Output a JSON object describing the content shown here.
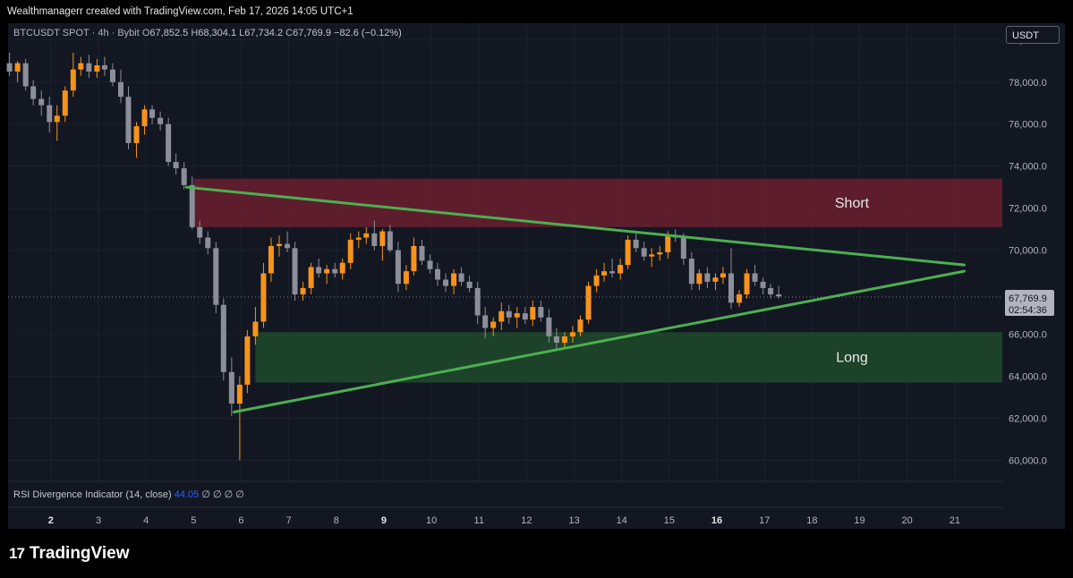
{
  "header": {
    "credit": "Wealthmanagerr created with TradingView.com, Feb 17, 2026 14:05 UTC+1"
  },
  "legend": {
    "symbol": "BTCUSDT SPOT · 4h · Bybit",
    "open_label": "O",
    "open": "67,852.5",
    "high_label": "H",
    "high": "68,304.1",
    "low_label": "L",
    "low": "67,734.2",
    "close_label": "C",
    "close": "67,769.9",
    "change": "−82.6 (−0.12%)"
  },
  "currency_button": "USDT",
  "indicator": {
    "name": "RSI Divergence Indicator (14, close)",
    "value": "44.05",
    "placeholders": "∅ ∅ ∅ ∅"
  },
  "brand": {
    "logo_glyph": "17",
    "name": "TradingView"
  },
  "colors": {
    "background": "#131722",
    "bull_candle": "#f7931a",
    "bear_candle": "#8c8f99",
    "short_zone": "#6b1f2e",
    "long_zone": "#1f4a2a",
    "triangle_line": "#4caf50",
    "price_label_bg": "#b2b5be"
  },
  "chart_data": {
    "type": "candlestick",
    "symbol": "BTCUSDT",
    "interval": "4h",
    "y_axis": {
      "ticks": [
        "80,000.0",
        "78,000.0",
        "76,000.0",
        "74,000.0",
        "72,000.0",
        "70,000.0",
        "66,000.0",
        "64,000.0",
        "62,000.0",
        "60,000.0"
      ],
      "tick_values": [
        80000,
        78000,
        76000,
        74000,
        72000,
        70000,
        66000,
        64000,
        62000,
        60000
      ],
      "range": [
        59000,
        80800
      ],
      "position": "right"
    },
    "x_axis": {
      "ticks": [
        "2",
        "3",
        "4",
        "5",
        "6",
        "7",
        "8",
        "9",
        "10",
        "11",
        "12",
        "13",
        "14",
        "15",
        "16",
        "17",
        "18",
        "19",
        "20",
        "21"
      ],
      "tick_days": [
        2,
        3,
        4,
        5,
        6,
        7,
        8,
        9,
        10,
        11,
        12,
        13,
        14,
        15,
        16,
        17,
        18,
        19,
        20,
        21
      ],
      "bold_ticks": [
        "2",
        "9",
        "16"
      ],
      "range_days": [
        1.1,
        22.0
      ]
    },
    "current_price": {
      "value": 67769.9,
      "label": "67,769.9",
      "countdown": "02:54:36"
    },
    "zones": [
      {
        "name": "Short",
        "label": "Short",
        "from_day": 5.0,
        "to_day": 22.0,
        "low": 71100,
        "high": 73400
      },
      {
        "name": "Long",
        "label": "Long",
        "from_day": 6.3,
        "to_day": 22.0,
        "low": 63700,
        "high": 66100
      }
    ],
    "lines": [
      {
        "name": "triangle-upper",
        "points": [
          [
            4.85,
            73000
          ],
          [
            21.2,
            69300
          ]
        ]
      },
      {
        "name": "triangle-lower",
        "points": [
          [
            5.85,
            62300
          ],
          [
            21.2,
            69000
          ]
        ]
      }
    ],
    "candles": [
      {
        "d": 1.13,
        "o": 78900,
        "h": 79400,
        "l": 78300,
        "c": 78500
      },
      {
        "d": 1.3,
        "o": 78500,
        "h": 79000,
        "l": 78000,
        "c": 78900
      },
      {
        "d": 1.47,
        "o": 78900,
        "h": 79100,
        "l": 77600,
        "c": 77800
      },
      {
        "d": 1.63,
        "o": 77800,
        "h": 78100,
        "l": 76900,
        "c": 77200
      },
      {
        "d": 1.8,
        "o": 77200,
        "h": 77600,
        "l": 76400,
        "c": 76900
      },
      {
        "d": 1.97,
        "o": 76900,
        "h": 77300,
        "l": 75600,
        "c": 76100
      },
      {
        "d": 2.13,
        "o": 76100,
        "h": 76900,
        "l": 75200,
        "c": 76400
      },
      {
        "d": 2.3,
        "o": 76400,
        "h": 77800,
        "l": 76100,
        "c": 77600
      },
      {
        "d": 2.47,
        "o": 77600,
        "h": 79400,
        "l": 77300,
        "c": 78600
      },
      {
        "d": 2.63,
        "o": 78600,
        "h": 79200,
        "l": 78300,
        "c": 78900
      },
      {
        "d": 2.8,
        "o": 78900,
        "h": 79300,
        "l": 78200,
        "c": 78500
      },
      {
        "d": 2.97,
        "o": 78500,
        "h": 79100,
        "l": 78200,
        "c": 78800
      },
      {
        "d": 3.13,
        "o": 78800,
        "h": 79200,
        "l": 78300,
        "c": 78600
      },
      {
        "d": 3.3,
        "o": 78600,
        "h": 78900,
        "l": 77800,
        "c": 78000
      },
      {
        "d": 3.47,
        "o": 78000,
        "h": 78600,
        "l": 77000,
        "c": 77300
      },
      {
        "d": 3.63,
        "o": 77300,
        "h": 77800,
        "l": 74800,
        "c": 75100
      },
      {
        "d": 3.8,
        "o": 75100,
        "h": 76100,
        "l": 74400,
        "c": 75900
      },
      {
        "d": 3.97,
        "o": 75900,
        "h": 76900,
        "l": 75500,
        "c": 76700
      },
      {
        "d": 4.13,
        "o": 76700,
        "h": 76900,
        "l": 76000,
        "c": 76300
      },
      {
        "d": 4.3,
        "o": 76300,
        "h": 76600,
        "l": 75700,
        "c": 76000
      },
      {
        "d": 4.47,
        "o": 76000,
        "h": 76300,
        "l": 74000,
        "c": 74200
      },
      {
        "d": 4.63,
        "o": 74200,
        "h": 74600,
        "l": 73600,
        "c": 73900
      },
      {
        "d": 4.8,
        "o": 73900,
        "h": 74200,
        "l": 72900,
        "c": 73100
      },
      {
        "d": 4.97,
        "o": 73100,
        "h": 73500,
        "l": 71000,
        "c": 71100
      },
      {
        "d": 5.13,
        "o": 71100,
        "h": 71400,
        "l": 70300,
        "c": 70600
      },
      {
        "d": 5.3,
        "o": 70600,
        "h": 70900,
        "l": 69800,
        "c": 70100
      },
      {
        "d": 5.47,
        "o": 70100,
        "h": 70400,
        "l": 67000,
        "c": 67400
      },
      {
        "d": 5.63,
        "o": 67400,
        "h": 67700,
        "l": 63800,
        "c": 64200
      },
      {
        "d": 5.8,
        "o": 64200,
        "h": 64900,
        "l": 62100,
        "c": 62700
      },
      {
        "d": 5.97,
        "o": 62700,
        "h": 64000,
        "l": 60000,
        "c": 63600
      },
      {
        "d": 6.13,
        "o": 63600,
        "h": 66200,
        "l": 63200,
        "c": 65900
      },
      {
        "d": 6.3,
        "o": 65900,
        "h": 67300,
        "l": 65500,
        "c": 66600
      },
      {
        "d": 6.47,
        "o": 66600,
        "h": 69400,
        "l": 66300,
        "c": 68900
      },
      {
        "d": 6.63,
        "o": 68900,
        "h": 70600,
        "l": 68500,
        "c": 70200
      },
      {
        "d": 6.8,
        "o": 70200,
        "h": 70700,
        "l": 69700,
        "c": 70300
      },
      {
        "d": 6.97,
        "o": 70300,
        "h": 70900,
        "l": 69900,
        "c": 70100
      },
      {
        "d": 7.13,
        "o": 70100,
        "h": 70400,
        "l": 67600,
        "c": 67900
      },
      {
        "d": 7.3,
        "o": 67900,
        "h": 68500,
        "l": 67600,
        "c": 68200
      },
      {
        "d": 7.47,
        "o": 68200,
        "h": 69400,
        "l": 67900,
        "c": 69200
      },
      {
        "d": 7.63,
        "o": 69200,
        "h": 69600,
        "l": 68700,
        "c": 68900
      },
      {
        "d": 7.8,
        "o": 68900,
        "h": 69300,
        "l": 68400,
        "c": 69100
      },
      {
        "d": 7.97,
        "o": 69100,
        "h": 69400,
        "l": 68700,
        "c": 68900
      },
      {
        "d": 8.13,
        "o": 68900,
        "h": 69600,
        "l": 68600,
        "c": 69400
      },
      {
        "d": 8.3,
        "o": 69400,
        "h": 70800,
        "l": 69100,
        "c": 70500
      },
      {
        "d": 8.47,
        "o": 70500,
        "h": 70900,
        "l": 70100,
        "c": 70600
      },
      {
        "d": 8.63,
        "o": 70600,
        "h": 71100,
        "l": 70300,
        "c": 70800
      },
      {
        "d": 8.8,
        "o": 70800,
        "h": 71400,
        "l": 70000,
        "c": 70200
      },
      {
        "d": 8.97,
        "o": 70200,
        "h": 71000,
        "l": 69500,
        "c": 70900
      },
      {
        "d": 9.13,
        "o": 70900,
        "h": 71200,
        "l": 69900,
        "c": 70000
      },
      {
        "d": 9.3,
        "o": 70000,
        "h": 70400,
        "l": 68000,
        "c": 68400
      },
      {
        "d": 9.47,
        "o": 68400,
        "h": 69300,
        "l": 68100,
        "c": 69000
      },
      {
        "d": 9.63,
        "o": 69000,
        "h": 70600,
        "l": 68800,
        "c": 70200
      },
      {
        "d": 9.8,
        "o": 70200,
        "h": 70500,
        "l": 69300,
        "c": 69500
      },
      {
        "d": 9.97,
        "o": 69500,
        "h": 69800,
        "l": 68900,
        "c": 69100
      },
      {
        "d": 10.13,
        "o": 69100,
        "h": 69400,
        "l": 68300,
        "c": 68600
      },
      {
        "d": 10.3,
        "o": 68600,
        "h": 68900,
        "l": 68000,
        "c": 68300
      },
      {
        "d": 10.47,
        "o": 68300,
        "h": 69100,
        "l": 67900,
        "c": 68900
      },
      {
        "d": 10.63,
        "o": 68900,
        "h": 69200,
        "l": 68300,
        "c": 68500
      },
      {
        "d": 10.8,
        "o": 68500,
        "h": 68800,
        "l": 68000,
        "c": 68200
      },
      {
        "d": 10.97,
        "o": 68200,
        "h": 68500,
        "l": 66500,
        "c": 66900
      },
      {
        "d": 11.13,
        "o": 66900,
        "h": 67300,
        "l": 65800,
        "c": 66300
      },
      {
        "d": 11.3,
        "o": 66300,
        "h": 66800,
        "l": 65900,
        "c": 66600
      },
      {
        "d": 11.47,
        "o": 66600,
        "h": 67500,
        "l": 66200,
        "c": 67100
      },
      {
        "d": 11.63,
        "o": 67100,
        "h": 67400,
        "l": 66500,
        "c": 66800
      },
      {
        "d": 11.8,
        "o": 66800,
        "h": 67300,
        "l": 66300,
        "c": 67000
      },
      {
        "d": 11.97,
        "o": 67000,
        "h": 67300,
        "l": 66500,
        "c": 66700
      },
      {
        "d": 12.13,
        "o": 66700,
        "h": 67600,
        "l": 66400,
        "c": 67300
      },
      {
        "d": 12.3,
        "o": 67300,
        "h": 67600,
        "l": 66600,
        "c": 66800
      },
      {
        "d": 12.47,
        "o": 66800,
        "h": 67200,
        "l": 65600,
        "c": 65900
      },
      {
        "d": 12.63,
        "o": 65900,
        "h": 66300,
        "l": 65200,
        "c": 65600
      },
      {
        "d": 12.8,
        "o": 65600,
        "h": 66100,
        "l": 65300,
        "c": 65900
      },
      {
        "d": 12.97,
        "o": 65900,
        "h": 66400,
        "l": 65600,
        "c": 66100
      },
      {
        "d": 13.13,
        "o": 66100,
        "h": 66900,
        "l": 65900,
        "c": 66700
      },
      {
        "d": 13.3,
        "o": 66700,
        "h": 68500,
        "l": 66500,
        "c": 68300
      },
      {
        "d": 13.47,
        "o": 68300,
        "h": 69100,
        "l": 68000,
        "c": 68800
      },
      {
        "d": 13.63,
        "o": 68800,
        "h": 69400,
        "l": 68500,
        "c": 69000
      },
      {
        "d": 13.8,
        "o": 69000,
        "h": 69600,
        "l": 68700,
        "c": 68900
      },
      {
        "d": 13.97,
        "o": 68900,
        "h": 69600,
        "l": 68600,
        "c": 69300
      },
      {
        "d": 14.13,
        "o": 69300,
        "h": 70700,
        "l": 69100,
        "c": 70500
      },
      {
        "d": 14.3,
        "o": 70500,
        "h": 70800,
        "l": 69900,
        "c": 70100
      },
      {
        "d": 14.47,
        "o": 70100,
        "h": 70400,
        "l": 69500,
        "c": 69700
      },
      {
        "d": 14.63,
        "o": 69700,
        "h": 70100,
        "l": 69200,
        "c": 69800
      },
      {
        "d": 14.8,
        "o": 69800,
        "h": 70200,
        "l": 69500,
        "c": 69900
      },
      {
        "d": 14.97,
        "o": 69900,
        "h": 70900,
        "l": 69600,
        "c": 70700
      },
      {
        "d": 15.13,
        "o": 70700,
        "h": 71000,
        "l": 70400,
        "c": 70600
      },
      {
        "d": 15.3,
        "o": 70600,
        "h": 70800,
        "l": 69300,
        "c": 69600
      },
      {
        "d": 15.47,
        "o": 69600,
        "h": 69900,
        "l": 68100,
        "c": 68400
      },
      {
        "d": 15.63,
        "o": 68400,
        "h": 69100,
        "l": 68100,
        "c": 68900
      },
      {
        "d": 15.8,
        "o": 68900,
        "h": 69200,
        "l": 68200,
        "c": 68500
      },
      {
        "d": 15.97,
        "o": 68500,
        "h": 68900,
        "l": 68100,
        "c": 68700
      },
      {
        "d": 16.13,
        "o": 68700,
        "h": 69200,
        "l": 68400,
        "c": 68900
      },
      {
        "d": 16.3,
        "o": 68900,
        "h": 70100,
        "l": 67200,
        "c": 67500
      },
      {
        "d": 16.47,
        "o": 67500,
        "h": 68100,
        "l": 67300,
        "c": 67900
      },
      {
        "d": 16.63,
        "o": 67900,
        "h": 69100,
        "l": 67700,
        "c": 68900
      },
      {
        "d": 16.8,
        "o": 68900,
        "h": 69300,
        "l": 68300,
        "c": 68500
      },
      {
        "d": 16.97,
        "o": 68500,
        "h": 68700,
        "l": 67900,
        "c": 68200
      },
      {
        "d": 17.13,
        "o": 68200,
        "h": 68400,
        "l": 67700,
        "c": 67900
      },
      {
        "d": 17.3,
        "o": 67900,
        "h": 68300,
        "l": 67700,
        "c": 67800
      }
    ]
  }
}
